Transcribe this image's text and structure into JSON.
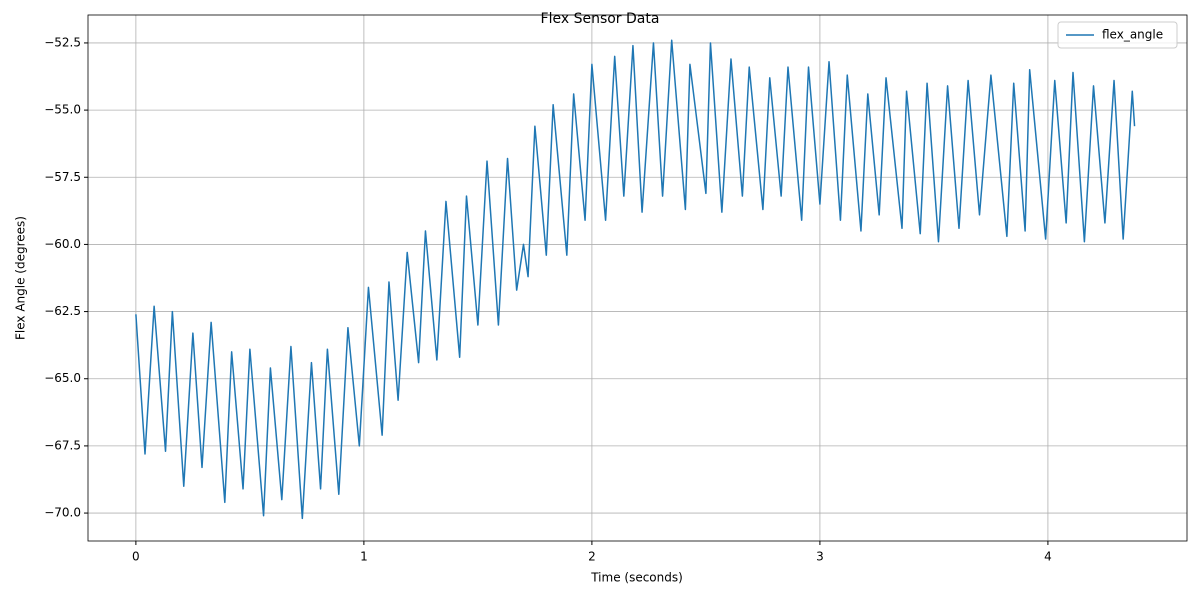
{
  "chart_data": {
    "type": "line",
    "title": "Flex Sensor Data",
    "x_label": "Time (seconds)",
    "y_label": "Flex Angle (degrees)",
    "x": [
      0,
      0.04,
      0.08,
      0.13,
      0.16,
      0.21,
      0.25,
      0.29,
      0.33,
      0.39,
      0.42,
      0.47,
      0.5,
      0.56,
      0.59,
      0.64,
      0.68,
      0.73,
      0.77,
      0.81,
      0.84,
      0.89,
      0.93,
      0.98,
      1.02,
      1.08,
      1.11,
      1.15,
      1.19,
      1.24,
      1.27,
      1.32,
      1.36,
      1.42,
      1.45,
      1.5,
      1.54,
      1.59,
      1.63,
      1.67,
      1.7,
      1.72,
      1.75,
      1.8,
      1.83,
      1.89,
      1.92,
      1.97,
      2.0,
      2.06,
      2.1,
      2.14,
      2.18,
      2.22,
      2.27,
      2.31,
      2.35,
      2.41,
      2.43,
      2.5,
      2.52,
      2.57,
      2.61,
      2.66,
      2.69,
      2.75,
      2.78,
      2.83,
      2.86,
      2.92,
      2.95,
      3.0,
      3.04,
      3.09,
      3.12,
      3.18,
      3.21,
      3.26,
      3.29,
      3.36,
      3.38,
      3.44,
      3.47,
      3.52,
      3.56,
      3.61,
      3.65,
      3.7,
      3.75,
      3.82,
      3.85,
      3.9,
      3.92,
      3.99,
      4.03,
      4.08,
      4.11,
      4.16,
      4.2,
      4.25,
      4.29,
      4.33,
      4.37,
      4.38
    ],
    "series": [
      {
        "name": "flex_angle",
        "color": "#1f77b4",
        "values": [
          -62.6,
          -67.8,
          -62.3,
          -67.7,
          -62.5,
          -69.0,
          -63.3,
          -68.3,
          -62.9,
          -69.6,
          -64.0,
          -69.1,
          -63.9,
          -70.1,
          -64.6,
          -69.5,
          -63.8,
          -70.2,
          -64.4,
          -69.1,
          -63.9,
          -69.3,
          -63.1,
          -67.5,
          -61.6,
          -67.1,
          -61.4,
          -65.8,
          -60.3,
          -64.4,
          -59.5,
          -64.3,
          -58.4,
          -64.2,
          -58.2,
          -63.0,
          -56.9,
          -63.0,
          -56.8,
          -61.7,
          -60.0,
          -61.2,
          -55.6,
          -60.4,
          -54.8,
          -60.4,
          -54.4,
          -59.1,
          -53.3,
          -59.1,
          -53.0,
          -58.2,
          -52.6,
          -58.8,
          -52.5,
          -58.2,
          -52.4,
          -58.7,
          -53.3,
          -58.1,
          -52.5,
          -58.8,
          -53.1,
          -58.2,
          -53.4,
          -58.7,
          -53.8,
          -58.2,
          -53.4,
          -59.1,
          -53.4,
          -58.5,
          -53.2,
          -59.1,
          -53.7,
          -59.5,
          -54.4,
          -58.9,
          -53.8,
          -59.4,
          -54.3,
          -59.6,
          -54.0,
          -59.9,
          -54.1,
          -59.4,
          -53.9,
          -58.9,
          -53.7,
          -59.7,
          -54.0,
          -59.5,
          -53.5,
          -59.8,
          -53.9,
          -59.2,
          -53.6,
          -59.9,
          -54.1,
          -59.2,
          -53.9,
          -59.8,
          -54.3,
          -55.6
        ]
      }
    ],
    "xlim": [
      -0.21,
      4.61
    ],
    "ylim": [
      -71.04,
      -51.46
    ],
    "xticks": [
      0,
      1,
      2,
      3,
      4
    ],
    "yticks": [
      {
        "value": -70,
        "label": "−70.0"
      },
      {
        "value": -67.5,
        "label": "−67.5"
      },
      {
        "value": -65,
        "label": "−65.0"
      },
      {
        "value": -62.5,
        "label": "−62.5"
      },
      {
        "value": -60,
        "label": "−60.0"
      },
      {
        "value": -57.5,
        "label": "−57.5"
      },
      {
        "value": -55,
        "label": "−55.0"
      },
      {
        "value": -52.5,
        "label": "−52.5"
      }
    ],
    "grid": true,
    "legend": "upper right"
  }
}
